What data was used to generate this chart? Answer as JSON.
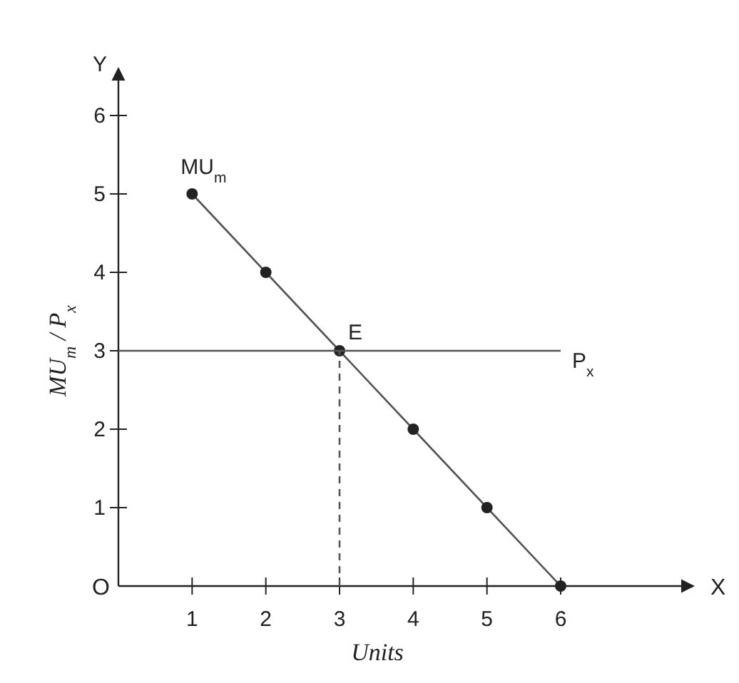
{
  "chart_data": {
    "type": "line",
    "xlabel": "Units",
    "ylabel": "MU$_{m}$ / P$_{x}$",
    "xlim": [
      0,
      7.8
    ],
    "ylim": [
      0,
      6.6
    ],
    "xticks": [
      1,
      2,
      3,
      4,
      5,
      6
    ],
    "yticks": [
      1,
      2,
      3,
      4,
      5,
      6
    ],
    "series": [
      {
        "name": "MU$_{m}$",
        "color": "#555555",
        "x": [
          1,
          2,
          3,
          4,
          5,
          6
        ],
        "values": [
          5,
          4,
          3,
          2,
          1,
          0
        ],
        "marker": "circle"
      },
      {
        "name": "P$_{x}$",
        "color": "#555555",
        "x": [
          0,
          6
        ],
        "values": [
          3,
          3
        ],
        "marker": "none"
      },
      {
        "color": "#555555",
        "x": [
          3,
          3
        ],
        "values": [
          0,
          3
        ],
        "marker": "none",
        "line_style": "dashed"
      }
    ],
    "annotations": [
      "Y",
      "X",
      "O",
      {
        "text": "E",
        "x": 3,
        "y": 3
      }
    ]
  }
}
